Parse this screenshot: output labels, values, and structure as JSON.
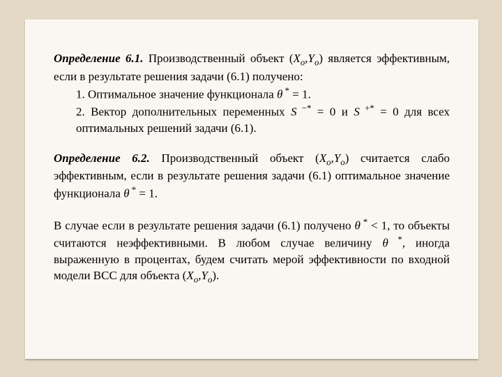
{
  "doc": {
    "background_outer": "#E4D9C4",
    "background_inner": "#FAF7F2",
    "font_family": "Times New Roman",
    "base_font_size_pt": 13,
    "text_color": "#000000",
    "def61_label": "Определение 6.1.",
    "def61_body_a": " Производственный объект (",
    "Xo_X": "X",
    "Xo_sub": "o",
    "comma1": ",",
    "Yo_Y": "Y",
    "Yo_sub": "o",
    "def61_body_b": ") является эффективным, если в результате решения задачи (6.1) получено:",
    "item1_a": "1. Оптимальное значение функционала ",
    "theta1": "θ",
    "star1": " *",
    "item1_b": " = 1.",
    "item2_a": "2. Вектор дополнительных переменных ",
    "S1": "S",
    "Sminus_sup": " −*",
    "item2_b": " = 0 и ",
    "S2": "S",
    "Splus_sup": " +*",
    "item2_c": " = 0  для всех оптимальных решений задачи (6.1).",
    "def62_label": "Определение 6.2.",
    "def62_body_a": " Производственный объект (",
    "def62_body_b": ") считается слабо эффективным, если в результате решения задачи (6.1) оптимальное значение функционала ",
    "theta2": "θ",
    "star2": " *",
    "def62_body_c": " = 1.",
    "para3_a": "В случае если в результате решения задачи (6.1) получено ",
    "theta3": "θ",
    "star3": " *",
    "para3_b": " < 1, то объекты считаются неэффективными. В любом случае величину ",
    "theta4": "θ",
    "star4": " *",
    "para3_c": ", иногда выраженную в процентах, будем считать мерой эффективности по входной модели BCC для объекта (",
    "para3_d": ")."
  }
}
